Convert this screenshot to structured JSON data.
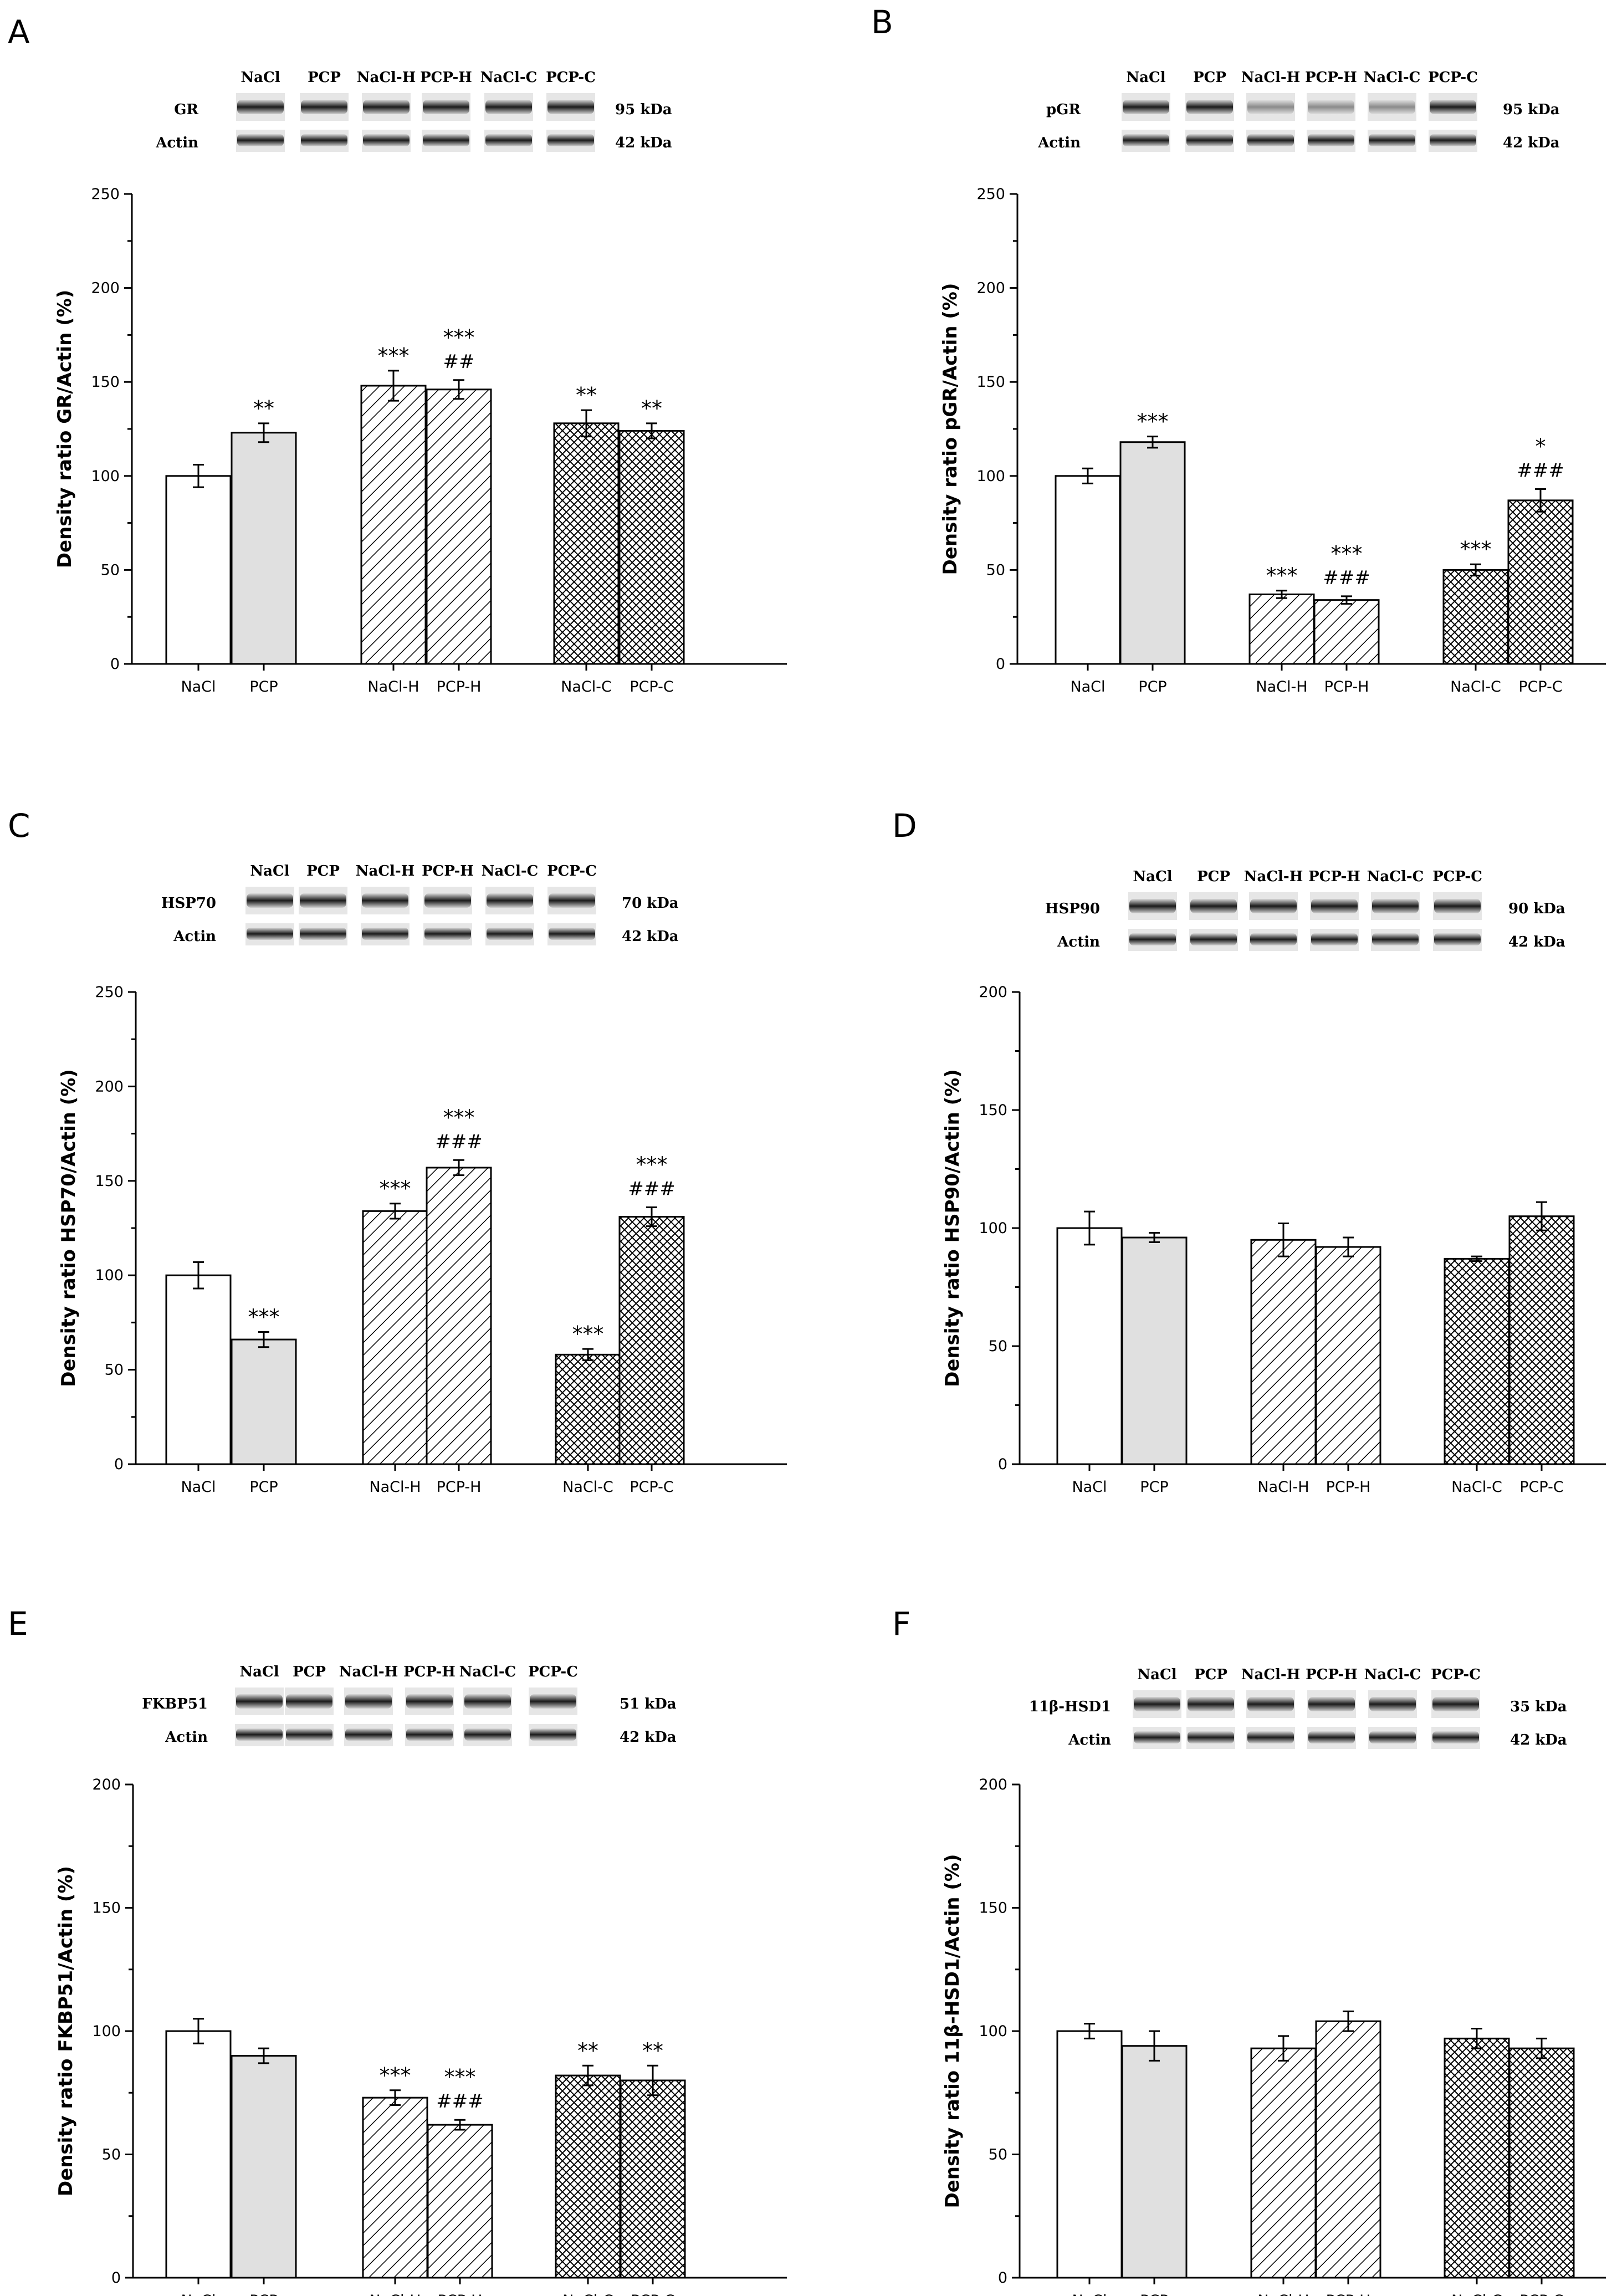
{
  "figure": {
    "lane_labels": [
      "NaCl",
      "PCP",
      "NaCl-H",
      "PCP-H",
      "NaCl-C",
      "PCP-C"
    ],
    "loading_control": "Actin",
    "loading_kda": "42 kDa"
  },
  "chart_data": [
    {
      "type": "bar",
      "panel": "A",
      "title": "",
      "ylabel": "Density ratio GR/Actin (%)",
      "xlabel": "",
      "ylim": [
        0,
        250
      ],
      "yticks": [
        0,
        50,
        100,
        150,
        200,
        250
      ],
      "protein": "GR",
      "protein_kda": "95 kDa",
      "categories": [
        "NaCl",
        "PCP",
        "NaCl-H",
        "PCP-H",
        "NaCl-C",
        "PCP-C"
      ],
      "values": [
        100,
        123,
        148,
        146,
        128,
        124
      ],
      "errors": [
        6,
        5,
        8,
        5,
        7,
        4
      ],
      "fills": [
        "white",
        "gray",
        "hatch",
        "hatch",
        "cross",
        "cross"
      ],
      "significance": [
        "",
        "**",
        "***",
        "***",
        "**",
        "**"
      ],
      "hash": [
        "",
        "",
        "",
        "##",
        "",
        ""
      ],
      "grid": false
    },
    {
      "type": "bar",
      "panel": "B",
      "title": "",
      "ylabel": "Density ratio pGR/Actin (%)",
      "xlabel": "",
      "ylim": [
        0,
        250
      ],
      "yticks": [
        0,
        50,
        100,
        150,
        200,
        250
      ],
      "protein": "pGR",
      "protein_kda": "95 kDa",
      "categories": [
        "NaCl",
        "PCP",
        "NaCl-H",
        "PCP-H",
        "NaCl-C",
        "PCP-C"
      ],
      "values": [
        100,
        118,
        37,
        34,
        50,
        87
      ],
      "errors": [
        4,
        3,
        2,
        2,
        3,
        6
      ],
      "fills": [
        "white",
        "gray",
        "hatch",
        "hatch",
        "cross",
        "cross"
      ],
      "significance": [
        "",
        "***",
        "***",
        "***",
        "***",
        "*"
      ],
      "hash": [
        "",
        "",
        "",
        "###",
        "",
        "###"
      ],
      "grid": false
    },
    {
      "type": "bar",
      "panel": "C",
      "title": "",
      "ylabel": "Density ratio HSP70/Actin (%)",
      "xlabel": "",
      "ylim": [
        0,
        250
      ],
      "yticks": [
        0,
        50,
        100,
        150,
        200,
        250
      ],
      "protein": "HSP70",
      "protein_kda": "70 kDa",
      "categories": [
        "NaCl",
        "PCP",
        "NaCl-H",
        "PCP-H",
        "NaCl-C",
        "PCP-C"
      ],
      "values": [
        100,
        66,
        134,
        157,
        58,
        131
      ],
      "errors": [
        7,
        4,
        4,
        4,
        3,
        5
      ],
      "fills": [
        "white",
        "gray",
        "hatch",
        "hatch",
        "cross",
        "cross"
      ],
      "significance": [
        "",
        "***",
        "***",
        "***",
        "***",
        "***"
      ],
      "hash": [
        "",
        "",
        "",
        "###",
        "",
        "###"
      ],
      "grid": false
    },
    {
      "type": "bar",
      "panel": "D",
      "title": "",
      "ylabel": "Density ratio HSP90/Actin (%)",
      "xlabel": "",
      "ylim": [
        0,
        200
      ],
      "yticks": [
        0,
        50,
        100,
        150,
        200
      ],
      "protein": "HSP90",
      "protein_kda": "90 kDa",
      "categories": [
        "NaCl",
        "PCP",
        "NaCl-H",
        "PCP-H",
        "NaCl-C",
        "PCP-C"
      ],
      "values": [
        100,
        96,
        95,
        92,
        87,
        105
      ],
      "errors": [
        7,
        2,
        7,
        4,
        1,
        6
      ],
      "fills": [
        "white",
        "gray",
        "hatch",
        "hatch",
        "cross",
        "cross"
      ],
      "significance": [
        "",
        "",
        "",
        "",
        "",
        ""
      ],
      "hash": [
        "",
        "",
        "",
        "",
        "",
        ""
      ],
      "grid": false
    },
    {
      "type": "bar",
      "panel": "E",
      "title": "",
      "ylabel": "Density ratio FKBP51/Actin (%)",
      "xlabel": "",
      "ylim": [
        0,
        200
      ],
      "yticks": [
        0,
        50,
        100,
        150,
        200
      ],
      "protein": "FKBP51",
      "protein_kda": "51 kDa",
      "categories": [
        "NaCl",
        "PCP",
        "NaCl-H",
        "PCP-H",
        "NaCl-C",
        "PCP-C"
      ],
      "values": [
        100,
        90,
        73,
        62,
        82,
        80
      ],
      "errors": [
        5,
        3,
        3,
        2,
        4,
        6
      ],
      "fills": [
        "white",
        "gray",
        "hatch",
        "hatch",
        "cross",
        "cross"
      ],
      "significance": [
        "",
        "",
        "***",
        "***",
        "**",
        "**"
      ],
      "hash": [
        "",
        "",
        "",
        "###",
        "",
        ""
      ],
      "grid": false
    },
    {
      "type": "bar",
      "panel": "F",
      "title": "",
      "ylabel": "Density ratio 11β-HSD1/Actin (%)",
      "xlabel": "",
      "ylim": [
        0,
        200
      ],
      "yticks": [
        0,
        50,
        100,
        150,
        200
      ],
      "protein": "11β-HSD1",
      "protein_kda": "35 kDa",
      "categories": [
        "NaCl",
        "PCP",
        "NaCl-H",
        "PCP-H",
        "NaCl-C",
        "PCP-C"
      ],
      "values": [
        100,
        94,
        93,
        104,
        97,
        93
      ],
      "errors": [
        3,
        6,
        5,
        4,
        4,
        4
      ],
      "fills": [
        "white",
        "gray",
        "hatch",
        "hatch",
        "cross",
        "cross"
      ],
      "significance": [
        "",
        "",
        "",
        "",
        "",
        ""
      ],
      "hash": [
        "",
        "",
        "",
        "",
        "",
        ""
      ],
      "grid": false
    }
  ]
}
